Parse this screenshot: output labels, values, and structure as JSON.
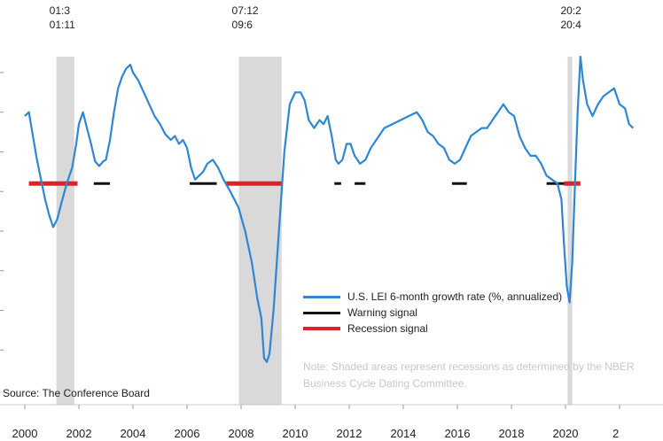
{
  "chart_data": {
    "type": "line",
    "title": "",
    "xlabel": "",
    "ylabel": "",
    "x_ticks": [
      "2000",
      "2002",
      "2004",
      "2006",
      "2008",
      "2010",
      "2012",
      "2014",
      "2016",
      "2018",
      "2020",
      "2"
    ],
    "x_range": [
      1999.9,
      2022.5
    ],
    "y_range": [
      -30,
      12
    ],
    "series": [
      {
        "name": "U.S. LEI 6-month growth rate (%, annualized)",
        "color": "#2e86d4",
        "points": [
          [
            2000.0,
            4.5
          ],
          [
            2000.15,
            5.0
          ],
          [
            2000.3,
            2.0
          ],
          [
            2000.45,
            -1.0
          ],
          [
            2000.6,
            -3.5
          ],
          [
            2000.75,
            -6.0
          ],
          [
            2000.9,
            -8.0
          ],
          [
            2001.05,
            -9.5
          ],
          [
            2001.2,
            -8.5
          ],
          [
            2001.35,
            -6.5
          ],
          [
            2001.55,
            -4.0
          ],
          [
            2001.75,
            -2.0
          ],
          [
            2001.9,
            1.0
          ],
          [
            2002.0,
            3.5
          ],
          [
            2002.15,
            5.0
          ],
          [
            2002.3,
            3.0
          ],
          [
            2002.45,
            1.0
          ],
          [
            2002.6,
            -1.2
          ],
          [
            2002.75,
            -1.8
          ],
          [
            2002.9,
            -1.2
          ],
          [
            2003.0,
            -1.0
          ],
          [
            2003.15,
            1.5
          ],
          [
            2003.3,
            5.0
          ],
          [
            2003.45,
            8.0
          ],
          [
            2003.6,
            9.5
          ],
          [
            2003.75,
            10.5
          ],
          [
            2003.9,
            11.0
          ],
          [
            2004.0,
            10.0
          ],
          [
            2004.2,
            9.0
          ],
          [
            2004.4,
            7.5
          ],
          [
            2004.6,
            6.0
          ],
          [
            2004.8,
            4.5
          ],
          [
            2005.0,
            3.5
          ],
          [
            2005.2,
            2.2
          ],
          [
            2005.4,
            1.5
          ],
          [
            2005.55,
            2.0
          ],
          [
            2005.7,
            1.0
          ],
          [
            2005.85,
            1.5
          ],
          [
            2006.0,
            0.5
          ],
          [
            2006.15,
            -2.0
          ],
          [
            2006.3,
            -3.5
          ],
          [
            2006.45,
            -3.0
          ],
          [
            2006.6,
            -2.5
          ],
          [
            2006.75,
            -1.5
          ],
          [
            2006.95,
            -1.0
          ],
          [
            2007.15,
            -2.0
          ],
          [
            2007.35,
            -3.5
          ],
          [
            2007.6,
            -5.0
          ],
          [
            2007.9,
            -7.0
          ],
          [
            2008.15,
            -10.0
          ],
          [
            2008.4,
            -14.0
          ],
          [
            2008.6,
            -18.5
          ],
          [
            2008.75,
            -21.0
          ],
          [
            2008.85,
            -26.0
          ],
          [
            2008.95,
            -26.5
          ],
          [
            2009.05,
            -25.5
          ],
          [
            2009.2,
            -20.0
          ],
          [
            2009.4,
            -10.0
          ],
          [
            2009.6,
            0.0
          ],
          [
            2009.8,
            6.0
          ],
          [
            2010.0,
            7.5
          ],
          [
            2010.2,
            7.5
          ],
          [
            2010.35,
            6.5
          ],
          [
            2010.5,
            4.0
          ],
          [
            2010.7,
            3.0
          ],
          [
            2010.9,
            4.0
          ],
          [
            2011.05,
            3.5
          ],
          [
            2011.2,
            4.5
          ],
          [
            2011.35,
            2.0
          ],
          [
            2011.5,
            -1.0
          ],
          [
            2011.6,
            -1.5
          ],
          [
            2011.75,
            -1.0
          ],
          [
            2011.9,
            1.0
          ],
          [
            2012.05,
            1.0
          ],
          [
            2012.2,
            -0.5
          ],
          [
            2012.4,
            -1.5
          ],
          [
            2012.6,
            -1.0
          ],
          [
            2012.8,
            0.5
          ],
          [
            2013.0,
            1.5
          ],
          [
            2013.3,
            3.0
          ],
          [
            2013.6,
            3.5
          ],
          [
            2013.9,
            4.0
          ],
          [
            2014.2,
            4.5
          ],
          [
            2014.5,
            5.0
          ],
          [
            2014.7,
            4.0
          ],
          [
            2014.9,
            2.5
          ],
          [
            2015.1,
            2.0
          ],
          [
            2015.3,
            1.0
          ],
          [
            2015.5,
            0.5
          ],
          [
            2015.7,
            -1.0
          ],
          [
            2015.9,
            -1.5
          ],
          [
            2016.1,
            -1.0
          ],
          [
            2016.3,
            0.5
          ],
          [
            2016.5,
            2.0
          ],
          [
            2016.7,
            2.5
          ],
          [
            2016.9,
            3.0
          ],
          [
            2017.1,
            3.0
          ],
          [
            2017.3,
            4.0
          ],
          [
            2017.5,
            5.0
          ],
          [
            2017.7,
            6.0
          ],
          [
            2017.9,
            5.0
          ],
          [
            2018.1,
            4.5
          ],
          [
            2018.3,
            2.0
          ],
          [
            2018.5,
            0.5
          ],
          [
            2018.7,
            -0.5
          ],
          [
            2018.9,
            -0.5
          ],
          [
            2019.1,
            -1.5
          ],
          [
            2019.3,
            -3.0
          ],
          [
            2019.5,
            -3.5
          ],
          [
            2019.7,
            -4.0
          ],
          [
            2019.85,
            -6.0
          ],
          [
            2019.95,
            -12.0
          ],
          [
            2020.05,
            -17.0
          ],
          [
            2020.15,
            -19.0
          ],
          [
            2020.25,
            -14.0
          ],
          [
            2020.35,
            -4.0
          ],
          [
            2020.45,
            5.0
          ],
          [
            2020.55,
            12.0
          ],
          [
            2020.65,
            9.0
          ],
          [
            2020.8,
            6.0
          ],
          [
            2021.0,
            4.5
          ],
          [
            2021.2,
            6.0
          ],
          [
            2021.4,
            7.0
          ],
          [
            2021.6,
            7.5
          ],
          [
            2021.8,
            8.0
          ],
          [
            2022.0,
            6.0
          ],
          [
            2022.2,
            5.5
          ],
          [
            2022.35,
            3.5
          ],
          [
            2022.5,
            3.0
          ]
        ]
      }
    ],
    "recessions": [
      {
        "start": 2001.17,
        "end": 2001.83
      },
      {
        "start": 2007.92,
        "end": 2009.5
      },
      {
        "start": 2020.08,
        "end": 2020.25
      }
    ],
    "signal_level": -4,
    "warning_signals": [
      {
        "start": 2002.55,
        "end": 2003.15
      },
      {
        "start": 2006.1,
        "end": 2007.1
      },
      {
        "start": 2011.45,
        "end": 2011.7
      },
      {
        "start": 2012.2,
        "end": 2012.6
      },
      {
        "start": 2015.8,
        "end": 2016.35
      },
      {
        "start": 2019.3,
        "end": 2019.95
      }
    ],
    "recession_signals": [
      {
        "start": 2000.15,
        "end": 2001.95
      },
      {
        "start": 2007.45,
        "end": 2009.5
      },
      {
        "start": 2019.95,
        "end": 2020.55
      }
    ],
    "peak_labels": [
      {
        "lines": [
          "01:3",
          "01:11"
        ],
        "x": 2001.17
      },
      {
        "lines": [
          "07:12",
          "09:6"
        ],
        "x": 2007.92
      },
      {
        "lines": [
          "20:2",
          "20:4"
        ],
        "x": 2020.08
      }
    ],
    "legend": [
      {
        "label": "U.S. LEI 6-month growth rate (%, annualized)",
        "color": "#2e86d4"
      },
      {
        "label": "Warning signal",
        "color": "#111111"
      },
      {
        "label": "Recession signal",
        "color": "#e0202a"
      }
    ],
    "note": "Note: Shaded areas represent recessions as determined by the NBER Business Cycle Dating Committee.",
    "source": "Source: The Conference Board",
    "grid": false,
    "legend_position": "bottom-right"
  }
}
